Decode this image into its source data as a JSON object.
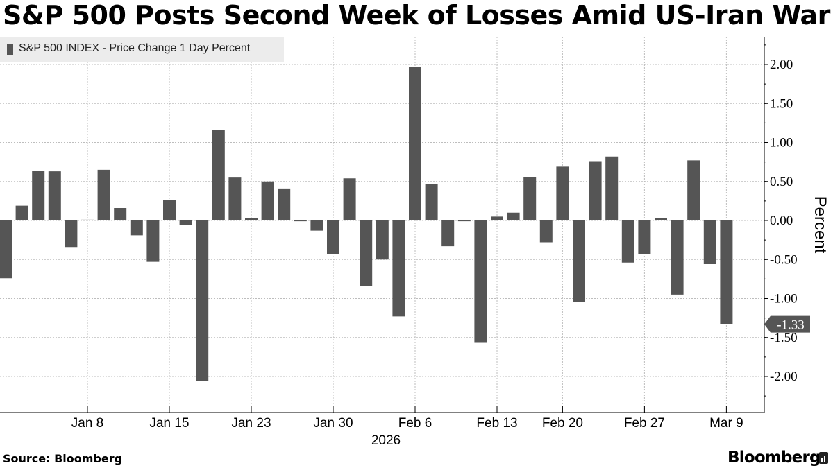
{
  "title": "S&P 500 Posts Second Week of Losses Amid US-Iran War",
  "source": "Source: Bloomberg",
  "brand": "Bloomberg",
  "colors": {
    "bar": "#555555",
    "grid": "#bdbdbd",
    "legend_bg": "#ececec",
    "last_label_bg": "#555555"
  },
  "chart_data": {
    "type": "bar",
    "title": "S&P 500 Posts Second Week of Losses Amid US-Iran War",
    "legend": [
      "S&P 500 INDEX - Price Change 1 Day Percent"
    ],
    "legend_position": "top-left",
    "ylabel": "Percent",
    "xlabel": "",
    "year_label": "2026",
    "ylim": [
      -2.5,
      2.35
    ],
    "yticks": [
      2.0,
      1.5,
      1.0,
      0.5,
      0.0,
      -0.5,
      -1.0,
      -1.5,
      -2.0
    ],
    "ytick_labels": [
      "2.00",
      "1.50",
      "1.00",
      "0.50",
      "0.00",
      "-0.50",
      "-1.00",
      "-1.50",
      "-2.00"
    ],
    "xticks": [
      {
        "label": "Jan 8",
        "index": 5
      },
      {
        "label": "Jan 15",
        "index": 10
      },
      {
        "label": "Jan 23",
        "index": 15
      },
      {
        "label": "Jan 30",
        "index": 20
      },
      {
        "label": "Feb 6",
        "index": 25
      },
      {
        "label": "Feb 13",
        "index": 30
      },
      {
        "label": "Feb 20",
        "index": 34
      },
      {
        "label": "Feb 27",
        "index": 39
      },
      {
        "label": "Mar 9",
        "index": 44
      }
    ],
    "grid": true,
    "last_value_label": "-1.33",
    "values": [
      -0.74,
      0.19,
      0.64,
      0.63,
      -0.34,
      0.01,
      0.65,
      0.16,
      -0.19,
      -0.53,
      0.26,
      -0.06,
      -2.06,
      1.16,
      0.55,
      0.03,
      0.5,
      0.41,
      -0.01,
      -0.13,
      -0.43,
      0.54,
      -0.84,
      -0.5,
      -1.23,
      1.97,
      0.47,
      -0.33,
      -0.01,
      -1.56,
      0.05,
      0.1,
      0.56,
      -0.28,
      0.69,
      -1.04,
      0.76,
      0.82,
      -0.54,
      -0.43,
      0.03,
      -0.95,
      0.77,
      -0.56,
      -1.33
    ]
  }
}
